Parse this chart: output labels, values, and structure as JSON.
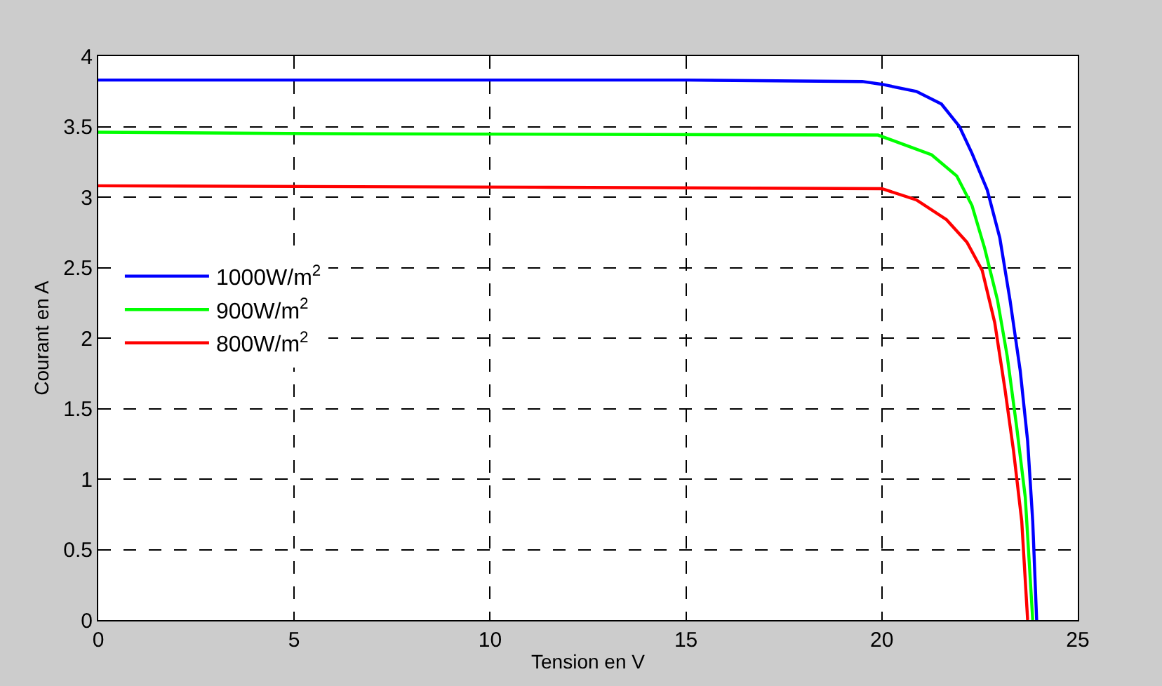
{
  "chart_data": {
    "type": "line",
    "xlabel": "Tension en V",
    "ylabel": "Courant en A",
    "xlim": [
      0,
      25
    ],
    "xticks": [
      0,
      5,
      10,
      15,
      20,
      25
    ],
    "ylim": [
      0,
      4
    ],
    "yticks": [
      0,
      0.5,
      1,
      1.5,
      2,
      2.5,
      3,
      3.5,
      4
    ],
    "grid": true,
    "legend": "left",
    "line_style": "solid",
    "marker": "none",
    "series": [
      {
        "name": "1000W/m$^{2}$",
        "color": "#0000ff",
        "x": [
          0,
          15,
          19.5,
          20,
          20.88,
          21.52,
          21.98,
          22.3,
          22.69,
          23.01,
          23.27,
          23.53,
          23.72,
          23.85,
          23.95
        ],
        "values": [
          3.83,
          3.83,
          3.82,
          3.8,
          3.75,
          3.66,
          3.5,
          3.31,
          3.05,
          2.71,
          2.27,
          1.77,
          1.27,
          0.7,
          0
        ]
      },
      {
        "name": "900W/m$^{2}$",
        "color": "#00ff00",
        "x": [
          0,
          5.5,
          19.9,
          20.49,
          21.27,
          21.91,
          22.3,
          22.62,
          22.95,
          23.2,
          23.44,
          23.66,
          23.85
        ],
        "values": [
          3.46,
          3.45,
          3.44,
          3.38,
          3.3,
          3.15,
          2.94,
          2.64,
          2.27,
          1.87,
          1.37,
          0.87,
          0
        ]
      },
      {
        "name": "800W/m$^{2}$",
        "color": "#ff0000",
        "x": [
          0,
          11.5,
          20,
          20.88,
          21.65,
          22.17,
          22.56,
          22.88,
          23.14,
          23.36,
          23.57,
          23.72
        ],
        "values": [
          3.08,
          3.07,
          3.06,
          2.98,
          2.84,
          2.68,
          2.48,
          2.11,
          1.64,
          1.2,
          0.7,
          0
        ]
      }
    ]
  }
}
